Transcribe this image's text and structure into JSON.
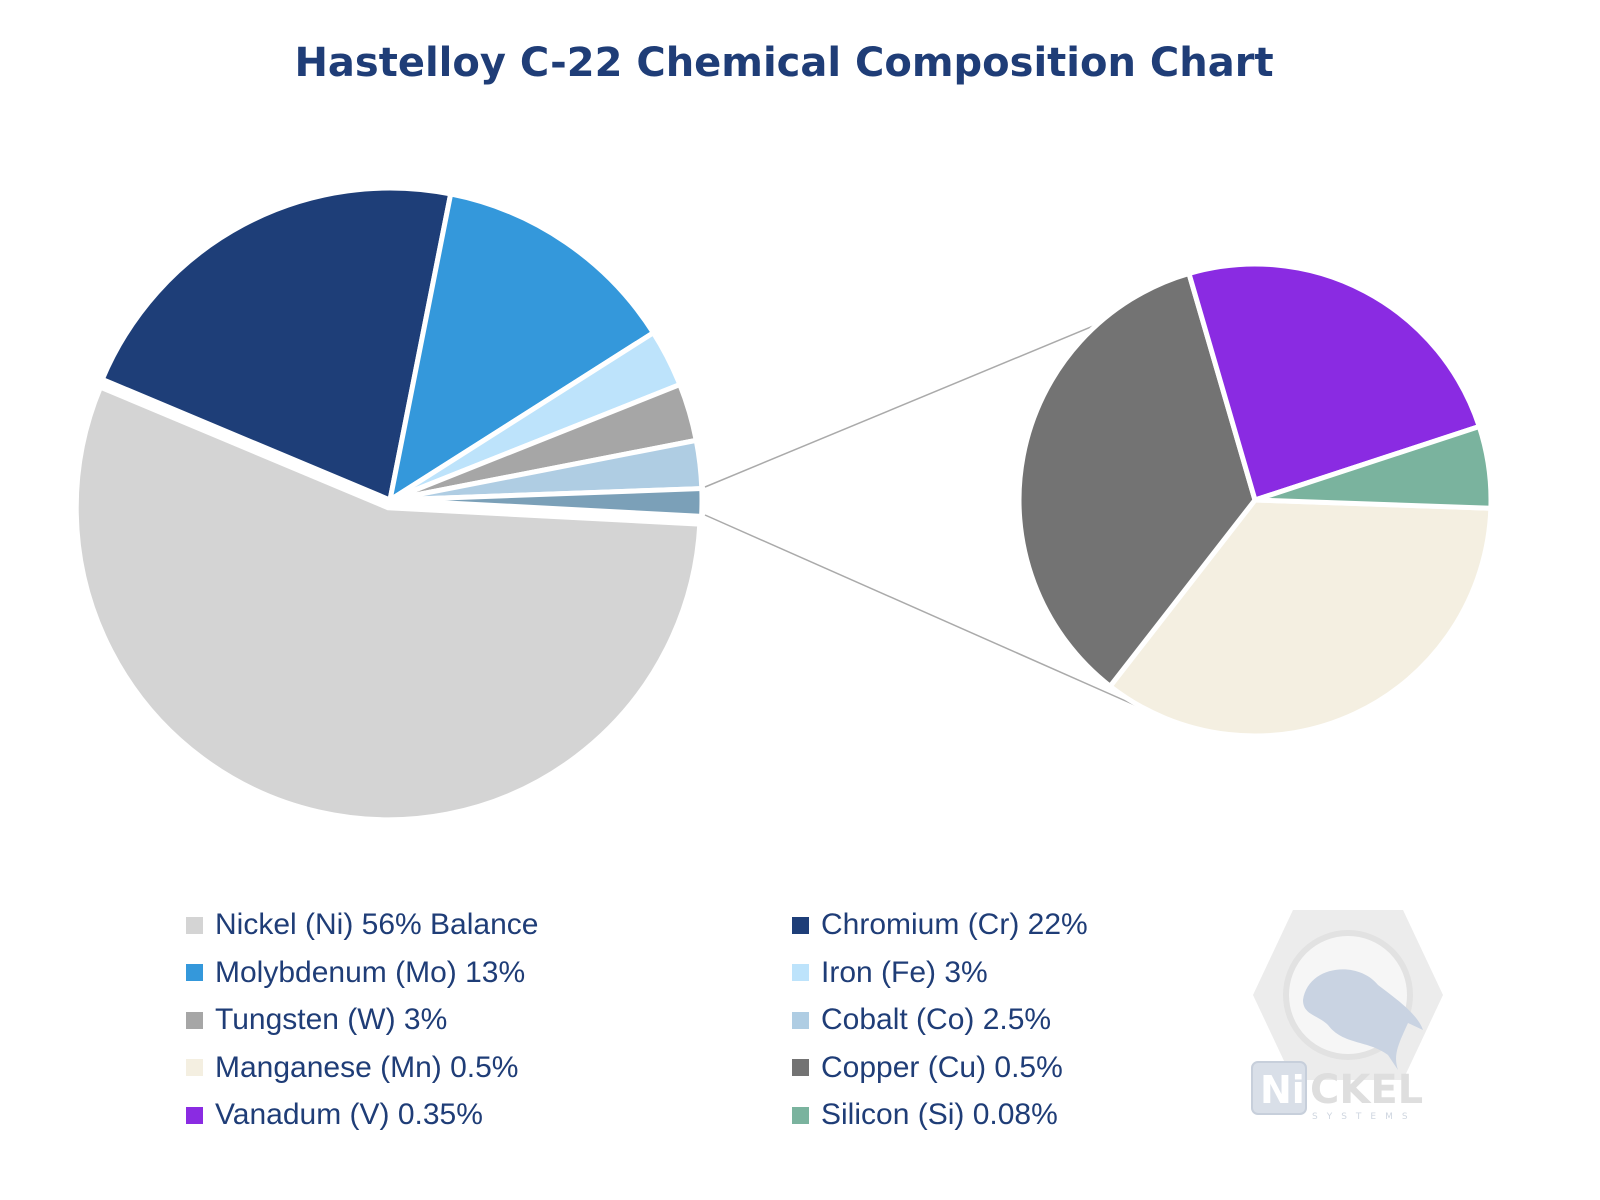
{
  "chart_data": [
    {
      "type": "pie",
      "title": "Hastelloy C-22 Chemical Composition Chart",
      "slices": [
        {
          "label": "Nickel (Ni) 56% Balance",
          "value": 56,
          "color": "#d4d4d4"
        },
        {
          "label": "Chromium (Cr) 22%",
          "value": 22,
          "color": "#1e3e78"
        },
        {
          "label": "Molybdenum (Mo) 13%",
          "value": 13,
          "color": "#3498db"
        },
        {
          "label": "Iron (Fe) 3%",
          "value": 3,
          "color": "#bde3fb"
        },
        {
          "label": "Tungsten (W) 3%",
          "value": 3,
          "color": "#a6a6a6"
        },
        {
          "label": "Cobalt (Co) 2.5%",
          "value": 2.5,
          "color": "#afcde3"
        },
        {
          "label": "",
          "value": 1.43,
          "color": "#7ba0b8"
        }
      ]
    },
    {
      "type": "pie",
      "slices": [
        {
          "label": "Manganese (Mn) 0.5%",
          "value": 0.5,
          "color": "#f4efe1"
        },
        {
          "label": "Copper (Cu) 0.5%",
          "value": 0.5,
          "color": "#737373"
        },
        {
          "label": "Vanadum (V) 0.35%",
          "value": 0.35,
          "color": "#8a2be2"
        },
        {
          "label": "Silicon (Si) 0.08%",
          "value": 0.08,
          "color": "#7ab39e"
        }
      ]
    }
  ],
  "legend": [
    {
      "label": "Nickel (Ni) 56% Balance",
      "color": "#d4d4d4"
    },
    {
      "label": "Chromium (Cr) 22%",
      "color": "#1e3e78"
    },
    {
      "label": "Molybdenum (Mo) 13%",
      "color": "#3498db"
    },
    {
      "label": "Iron (Fe) 3%",
      "color": "#bde3fb"
    },
    {
      "label": "Tungsten (W) 3%",
      "color": "#a6a6a6"
    },
    {
      "label": "Cobalt (Co) 2.5%",
      "color": "#afcde3"
    },
    {
      "label": "Manganese (Mn) 0.5%",
      "color": "#f4efe1"
    },
    {
      "label": "Copper (Cu) 0.5%",
      "color": "#737373"
    },
    {
      "label": "Vanadum (V) 0.35%",
      "color": "#8a2be2"
    },
    {
      "label": "Silicon (Si) 0.08%",
      "color": "#7ab39e"
    }
  ],
  "logo": {
    "text": "NiCKEL SYSTEMS"
  }
}
